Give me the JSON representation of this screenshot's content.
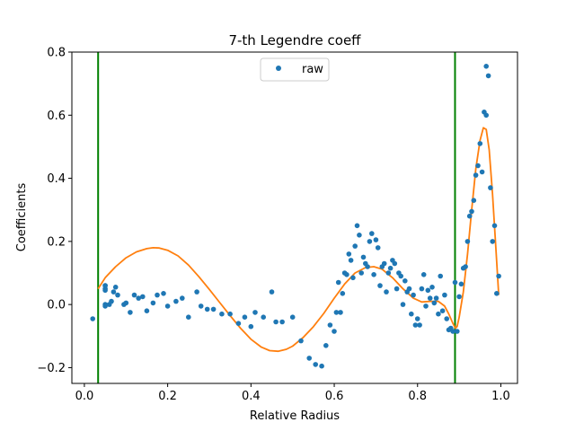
{
  "chart_data": {
    "type": "scatter",
    "title": "7-th Legendre coeff",
    "xlabel": "Relative Radius",
    "ylabel": "Coefficients",
    "xlim": [
      -0.03,
      1.04
    ],
    "ylim": [
      -0.25,
      0.8
    ],
    "xticks": [
      0.0,
      0.2,
      0.4,
      0.6,
      0.8,
      1.0
    ],
    "xtick_labels": [
      "0.0",
      "0.2",
      "0.4",
      "0.6",
      "0.8",
      "1.0"
    ],
    "yticks": [
      -0.2,
      0.0,
      0.2,
      0.4,
      0.6,
      0.8
    ],
    "ytick_labels": [
      "−0.2",
      "0.0",
      "0.2",
      "0.4",
      "0.6",
      "0.8"
    ],
    "legend": {
      "label": "raw",
      "placement": "top-center"
    },
    "colors": {
      "raw": "#1f77b4",
      "fit": "#ff7f0e",
      "vlines": "#008000"
    },
    "vlines": [
      0.033,
      0.89
    ],
    "series": [
      {
        "name": "raw",
        "kind": "scatter",
        "points": [
          [
            0.02,
            -0.045
          ],
          [
            0.05,
            0.06
          ],
          [
            0.05,
            0.045
          ],
          [
            0.05,
            0.05
          ],
          [
            0.05,
            0.06
          ],
          [
            0.05,
            0.0
          ],
          [
            0.05,
            -0.005
          ],
          [
            0.06,
            0.0
          ],
          [
            0.065,
            0.01
          ],
          [
            0.07,
            0.04
          ],
          [
            0.075,
            0.055
          ],
          [
            0.08,
            0.03
          ],
          [
            0.095,
            0.0
          ],
          [
            0.1,
            0.005
          ],
          [
            0.11,
            -0.025
          ],
          [
            0.12,
            0.03
          ],
          [
            0.13,
            0.02
          ],
          [
            0.14,
            0.025
          ],
          [
            0.15,
            -0.02
          ],
          [
            0.165,
            0.005
          ],
          [
            0.175,
            0.03
          ],
          [
            0.19,
            0.035
          ],
          [
            0.2,
            -0.005
          ],
          [
            0.22,
            0.01
          ],
          [
            0.235,
            0.02
          ],
          [
            0.25,
            -0.04
          ],
          [
            0.27,
            0.04
          ],
          [
            0.28,
            -0.005
          ],
          [
            0.295,
            -0.015
          ],
          [
            0.31,
            -0.015
          ],
          [
            0.33,
            -0.03
          ],
          [
            0.35,
            -0.03
          ],
          [
            0.37,
            -0.06
          ],
          [
            0.385,
            -0.04
          ],
          [
            0.4,
            -0.07
          ],
          [
            0.41,
            -0.025
          ],
          [
            0.43,
            -0.04
          ],
          [
            0.45,
            0.04
          ],
          [
            0.46,
            -0.055
          ],
          [
            0.475,
            -0.055
          ],
          [
            0.5,
            -0.04
          ],
          [
            0.52,
            -0.115
          ],
          [
            0.54,
            -0.17
          ],
          [
            0.555,
            -0.19
          ],
          [
            0.57,
            -0.195
          ],
          [
            0.58,
            -0.13
          ],
          [
            0.59,
            -0.065
          ],
          [
            0.6,
            -0.085
          ],
          [
            0.605,
            -0.025
          ],
          [
            0.61,
            0.07
          ],
          [
            0.615,
            -0.025
          ],
          [
            0.62,
            0.035
          ],
          [
            0.625,
            0.1
          ],
          [
            0.63,
            0.095
          ],
          [
            0.635,
            0.16
          ],
          [
            0.64,
            0.14
          ],
          [
            0.645,
            0.085
          ],
          [
            0.65,
            0.185
          ],
          [
            0.655,
            0.25
          ],
          [
            0.66,
            0.22
          ],
          [
            0.665,
            0.1
          ],
          [
            0.67,
            0.15
          ],
          [
            0.675,
            0.13
          ],
          [
            0.68,
            0.12
          ],
          [
            0.685,
            0.2
          ],
          [
            0.69,
            0.225
          ],
          [
            0.695,
            0.095
          ],
          [
            0.7,
            0.205
          ],
          [
            0.705,
            0.18
          ],
          [
            0.71,
            0.06
          ],
          [
            0.715,
            0.12
          ],
          [
            0.72,
            0.13
          ],
          [
            0.725,
            0.04
          ],
          [
            0.73,
            0.1
          ],
          [
            0.735,
            0.115
          ],
          [
            0.74,
            0.14
          ],
          [
            0.745,
            0.13
          ],
          [
            0.75,
            0.05
          ],
          [
            0.755,
            0.1
          ],
          [
            0.76,
            0.09
          ],
          [
            0.765,
            0.0
          ],
          [
            0.77,
            0.075
          ],
          [
            0.775,
            0.04
          ],
          [
            0.78,
            0.05
          ],
          [
            0.785,
            -0.03
          ],
          [
            0.79,
            0.03
          ],
          [
            0.795,
            -0.065
          ],
          [
            0.8,
            -0.045
          ],
          [
            0.805,
            -0.065
          ],
          [
            0.81,
            0.05
          ],
          [
            0.815,
            0.095
          ],
          [
            0.82,
            -0.005
          ],
          [
            0.825,
            0.045
          ],
          [
            0.83,
            0.02
          ],
          [
            0.835,
            0.055
          ],
          [
            0.84,
            0.005
          ],
          [
            0.845,
            0.02
          ],
          [
            0.85,
            -0.03
          ],
          [
            0.855,
            0.09
          ],
          [
            0.86,
            -0.02
          ],
          [
            0.865,
            0.03
          ],
          [
            0.87,
            -0.045
          ],
          [
            0.875,
            -0.08
          ],
          [
            0.88,
            -0.075
          ],
          [
            0.885,
            -0.085
          ],
          [
            0.89,
            0.07
          ],
          [
            0.895,
            -0.085
          ],
          [
            0.9,
            0.025
          ],
          [
            0.905,
            0.065
          ],
          [
            0.91,
            0.115
          ],
          [
            0.915,
            0.12
          ],
          [
            0.92,
            0.2
          ],
          [
            0.925,
            0.28
          ],
          [
            0.93,
            0.295
          ],
          [
            0.935,
            0.33
          ],
          [
            0.94,
            0.41
          ],
          [
            0.945,
            0.44
          ],
          [
            0.95,
            0.51
          ],
          [
            0.955,
            0.42
          ],
          [
            0.96,
            0.61
          ],
          [
            0.965,
            0.6
          ],
          [
            0.965,
            0.755
          ],
          [
            0.97,
            0.725
          ],
          [
            0.975,
            0.37
          ],
          [
            0.98,
            0.2
          ],
          [
            0.985,
            0.25
          ],
          [
            0.99,
            0.035
          ],
          [
            0.995,
            0.09
          ]
        ]
      },
      {
        "name": "fit",
        "kind": "line",
        "points": [
          [
            0.033,
            0.05
          ],
          [
            0.05,
            0.085
          ],
          [
            0.075,
            0.12
          ],
          [
            0.1,
            0.148
          ],
          [
            0.125,
            0.167
          ],
          [
            0.15,
            0.177
          ],
          [
            0.165,
            0.18
          ],
          [
            0.18,
            0.179
          ],
          [
            0.2,
            0.172
          ],
          [
            0.225,
            0.154
          ],
          [
            0.25,
            0.125
          ],
          [
            0.275,
            0.088
          ],
          [
            0.3,
            0.048
          ],
          [
            0.325,
            0.006
          ],
          [
            0.35,
            -0.035
          ],
          [
            0.375,
            -0.075
          ],
          [
            0.4,
            -0.11
          ],
          [
            0.425,
            -0.135
          ],
          [
            0.445,
            -0.146
          ],
          [
            0.465,
            -0.148
          ],
          [
            0.485,
            -0.142
          ],
          [
            0.5,
            -0.132
          ],
          [
            0.525,
            -0.105
          ],
          [
            0.55,
            -0.07
          ],
          [
            0.575,
            -0.028
          ],
          [
            0.6,
            0.02
          ],
          [
            0.625,
            0.065
          ],
          [
            0.65,
            0.1
          ],
          [
            0.675,
            0.117
          ],
          [
            0.695,
            0.12
          ],
          [
            0.715,
            0.112
          ],
          [
            0.74,
            0.085
          ],
          [
            0.765,
            0.05
          ],
          [
            0.79,
            0.02
          ],
          [
            0.81,
            0.008
          ],
          [
            0.83,
            0.01
          ],
          [
            0.85,
            0.01
          ],
          [
            0.865,
            -0.005
          ],
          [
            0.875,
            -0.03
          ],
          [
            0.885,
            -0.06
          ],
          [
            0.891,
            -0.075
          ],
          [
            0.895,
            -0.07
          ],
          [
            0.9,
            -0.04
          ],
          [
            0.91,
            0.04
          ],
          [
            0.92,
            0.16
          ],
          [
            0.93,
            0.3
          ],
          [
            0.94,
            0.43
          ],
          [
            0.95,
            0.52
          ],
          [
            0.958,
            0.56
          ],
          [
            0.965,
            0.555
          ],
          [
            0.972,
            0.49
          ],
          [
            0.98,
            0.35
          ],
          [
            0.988,
            0.18
          ],
          [
            0.995,
            0.03
          ]
        ]
      }
    ]
  }
}
